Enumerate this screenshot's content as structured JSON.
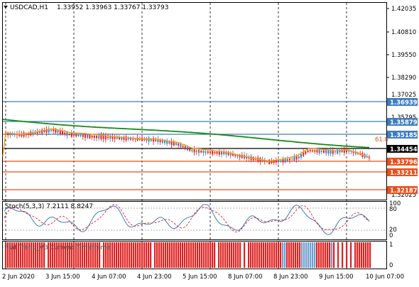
{
  "header": {
    "symbol": "USDCAD,H1",
    "ohlc": "1.33952 1.33963 1.33767 1.33793"
  },
  "price_axis": {
    "labels": [
      "1.42035",
      "1.40810",
      "1.39550",
      "1.38290",
      "1.37025",
      "1.35795",
      "1.32025"
    ],
    "tags": [
      {
        "text": "1.36939",
        "color": "#3d7dbf"
      },
      {
        "text": "1.35879",
        "color": "#3d7dbf"
      },
      {
        "text": "1.35185",
        "color": "#3d7dbf"
      },
      {
        "text": "1.34454",
        "color": "#000000"
      },
      {
        "text": "1.33796",
        "color": "#e8501c"
      },
      {
        "text": "1.33211",
        "color": "#e8501c"
      },
      {
        "text": "1.32187",
        "color": "#e8501c"
      }
    ],
    "fib_label": "61.8"
  },
  "stochastic": {
    "label": "Stoch(5,3,3) 7.2111 8.8247",
    "levels": [
      "100",
      "80",
      "20",
      "0"
    ]
  },
  "flat_trend": {
    "label": "Flat Trend_V3 Current Timeframe",
    "levels": [
      "1",
      "0"
    ]
  },
  "time_axis": {
    "labels": [
      "2 Jun 2020",
      "3 Jun 15:00",
      "4 Jun 07:00",
      "4 Jun 23:00",
      "5 Jun 15:00",
      "8 Jun 07:00",
      "8 Jun 23:00",
      "9 Jun 15:00",
      "10 Jun 07:00"
    ]
  },
  "colors": {
    "bull_candle": "#3d7dbf",
    "bear_candle": "#e02020",
    "ma_slow": "#1a8a1a",
    "ma_fast": "#f0a020",
    "support": "#e8501c",
    "resistance": "#3d7dbf",
    "stoch_main": "#3d7dbf",
    "stoch_signal": "#e02020",
    "flat_up": "#6f9fd0",
    "flat_down": "#e02020"
  }
}
